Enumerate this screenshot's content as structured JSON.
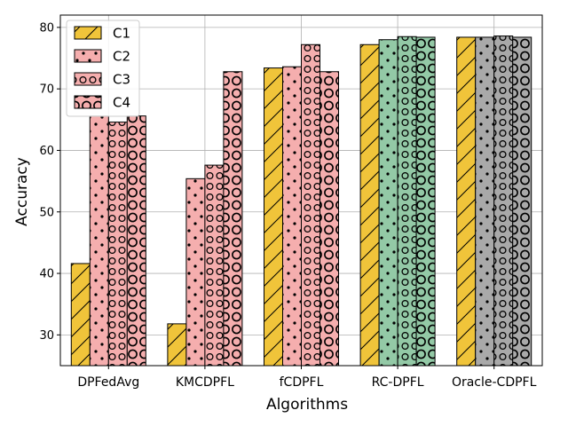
{
  "chart_data": {
    "type": "bar",
    "title": "",
    "xlabel": "Algorithms",
    "ylabel": "Accuracy",
    "ylim": [
      25,
      82
    ],
    "yticks": [
      30,
      40,
      50,
      60,
      70,
      80
    ],
    "grid": true,
    "legend_position": "top-left",
    "categories": [
      "DPFedAvg",
      "KMCDPFL",
      "fCDPFL",
      "RC-DPFL",
      "Oracle-CDPFL"
    ],
    "series": [
      {
        "name": "C1",
        "values": [
          41.6,
          31.8,
          73.4,
          77.2,
          78.4
        ],
        "hatch": "diagonal"
      },
      {
        "name": "C2",
        "values": [
          65.6,
          55.4,
          73.6,
          78.0,
          78.4
        ],
        "hatch": "dots"
      },
      {
        "name": "C3",
        "values": [
          64.6,
          57.6,
          77.2,
          78.5,
          78.6
        ],
        "hatch": "small-circles"
      },
      {
        "name": "C4",
        "values": [
          65.6,
          72.8,
          72.8,
          78.4,
          78.4
        ],
        "hatch": "large-circles"
      }
    ],
    "bar_colors": [
      [
        "#f0c43a",
        "#f5aeae",
        "#f5aeae",
        "#f5aeae"
      ],
      [
        "#f0c43a",
        "#f5aeae",
        "#f5aeae",
        "#f5aeae"
      ],
      [
        "#f0c43a",
        "#f5aeae",
        "#f5aeae",
        "#f5aeae"
      ],
      [
        "#f0c43a",
        "#93c9a6",
        "#93c9a6",
        "#93c9a6"
      ],
      [
        "#f0c43a",
        "#a9a9a9",
        "#a9a9a9",
        "#a9a9a9"
      ]
    ],
    "legend_colors": [
      "#f0c43a",
      "#f5aeae",
      "#f5aeae",
      "#f5aeae"
    ]
  }
}
